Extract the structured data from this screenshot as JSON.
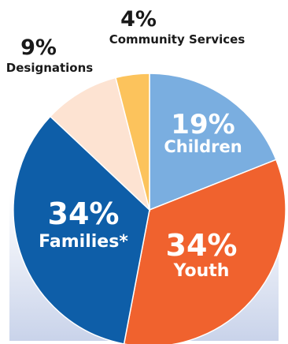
{
  "chart_data": {
    "type": "pie",
    "slices": [
      {
        "label": "Children",
        "percent_text": "19%",
        "value": 19,
        "color": "#7aaee0"
      },
      {
        "label": "Youth",
        "percent_text": "34%",
        "value": 34,
        "color": "#f0622e"
      },
      {
        "label": "Families*",
        "percent_text": "34%",
        "value": 34,
        "color": "#0e5ea8"
      },
      {
        "label": "Designations",
        "percent_text": "9%",
        "value": 9,
        "color": "#fde3d2"
      },
      {
        "label": "Community Services",
        "percent_text": "4%",
        "value": 4,
        "color": "#fcc35c"
      }
    ]
  },
  "colors": {
    "background_gradient_top": "#ffffff",
    "background_gradient_bottom": "#c9d3ea"
  }
}
